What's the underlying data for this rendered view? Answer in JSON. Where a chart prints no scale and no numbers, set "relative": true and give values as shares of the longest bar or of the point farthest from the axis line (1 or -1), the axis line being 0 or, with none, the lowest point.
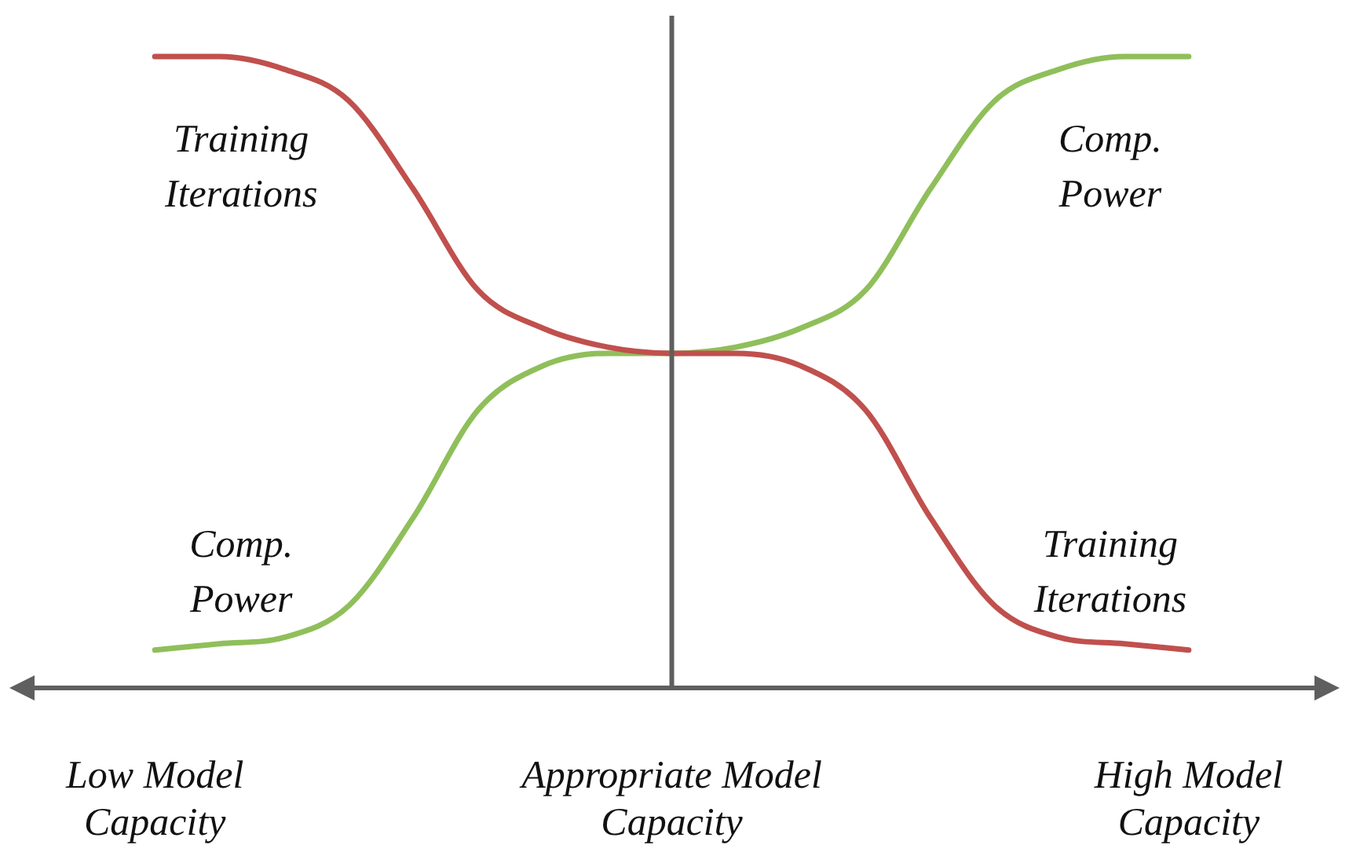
{
  "chart_data": {
    "type": "line",
    "relative": true,
    "legend": false,
    "grid": false,
    "marker": "none",
    "line_style": "solid",
    "categories": [
      "Low Model Capacity",
      null,
      null,
      null,
      null,
      null,
      null,
      null,
      "Appropriate Model Capacity",
      null,
      null,
      null,
      null,
      null,
      null,
      null,
      "High Model Capacity"
    ],
    "series": [
      {
        "name": "Training Iterations",
        "color": "#c0504d",
        "values": [
          1,
          1,
          0.98,
          0.93,
          0.79,
          0.63,
          0.57,
          0.54,
          0.53,
          0.53,
          0.51,
          0.44,
          0.27,
          0.13,
          0.08,
          0.07,
          0.06
        ]
      },
      {
        "name": "Comp. Power",
        "color": "#8fbf5a",
        "values": [
          0.06,
          0.07,
          0.08,
          0.13,
          0.27,
          0.44,
          0.51,
          0.53,
          0.53,
          0.54,
          0.57,
          0.63,
          0.79,
          0.93,
          0.98,
          1,
          1
        ]
      }
    ],
    "ref_lines": [
      {
        "axis": "x",
        "value": "Appropriate Model Capacity",
        "color": "#5f5f5f"
      }
    ]
  }
}
